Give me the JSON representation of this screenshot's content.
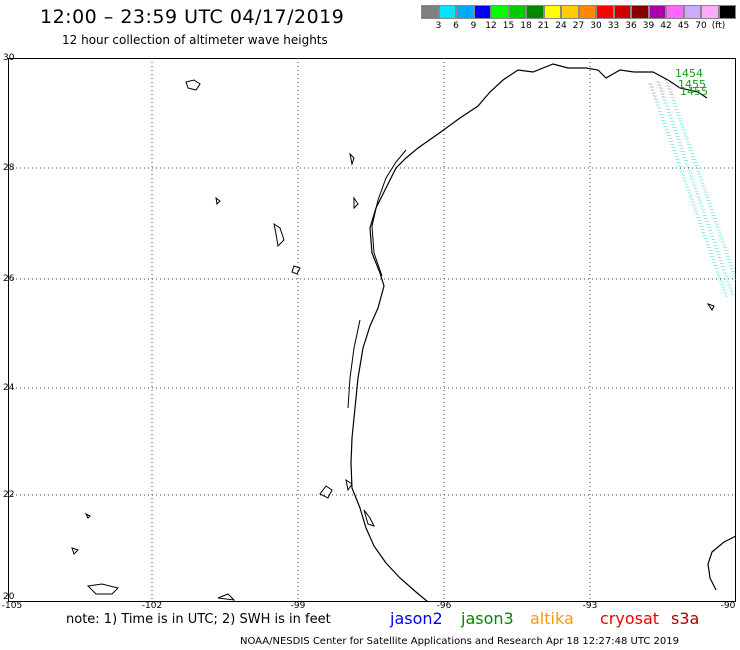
{
  "header": {
    "title": "12:00 – 23:59 UTC 04/17/2019",
    "subtitle": "12 hour collection of altimeter wave heights"
  },
  "scale": {
    "unit": "(ft)",
    "colors": [
      "#7f7f7f",
      "#00e5ff",
      "#00aaff",
      "#0000ff",
      "#00ff00",
      "#00cc00",
      "#008800",
      "#ffff00",
      "#ffcc00",
      "#ff8800",
      "#ff0000",
      "#cc0000",
      "#880000",
      "#aa00aa",
      "#ff66ff",
      "#ccaaff",
      "#ffaaff",
      "#000000"
    ],
    "labels": [
      "3",
      "6",
      "9",
      "12",
      "15",
      "18",
      "21",
      "24",
      "27",
      "30",
      "33",
      "36",
      "39",
      "42",
      "45",
      "70"
    ]
  },
  "axes": {
    "lat_labels": [
      "30",
      "28",
      "26",
      "24",
      "22",
      "20"
    ],
    "lon_labels": [
      "-105",
      "-102",
      "-99",
      "-96",
      "-93",
      "-90"
    ]
  },
  "passes": {
    "labels": [
      "1454",
      "1455",
      "1455"
    ],
    "track_color": "#33dddd"
  },
  "note": "note: 1) Time is in UTC; 2) SWH is in feet",
  "legend": [
    {
      "name": "jason2",
      "color": "#0000ee"
    },
    {
      "name": "jason3",
      "color": "#008800"
    },
    {
      "name": "altika",
      "color": "#ff9900"
    },
    {
      "name": "cryosat",
      "color": "#ee0000"
    },
    {
      "name": "s3a",
      "color": "#aa0000"
    }
  ],
  "credit": "NOAA/NESDIS Center for Satellite Applications and Research    Apr 18 12:27:48 UTC 2019"
}
